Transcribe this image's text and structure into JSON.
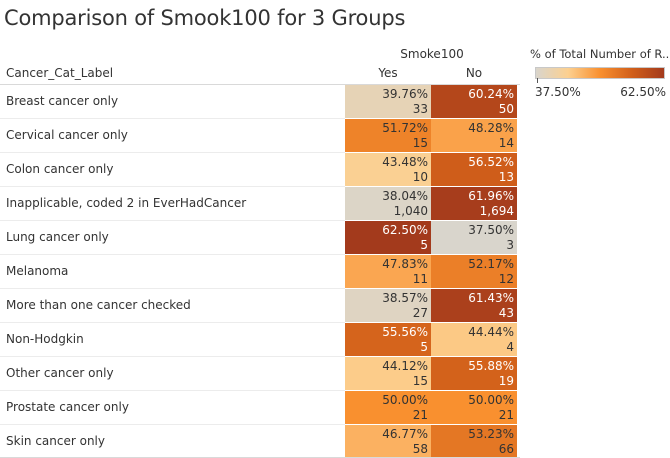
{
  "title": "Comparison of Smook100 for 3 Groups",
  "column_group_label": "Smoke100",
  "row_header_label": "Cancer_Cat_Label",
  "columns": [
    "Yes",
    "No"
  ],
  "legend": {
    "title": "% of Total Number of R..",
    "min_label": "37.50%",
    "max_label": "62.50%",
    "min_value": 37.5,
    "max_value": 62.5,
    "colors": [
      "#d9d5cc",
      "#fcd090",
      "#f9902f",
      "#d15f1a",
      "#a33a1c"
    ]
  },
  "chart_data": {
    "type": "heatmap",
    "title": "Comparison of Smook100 for 3 Groups",
    "xlabel": "Smoke100",
    "ylabel": "Cancer_Cat_Label",
    "columns": [
      "Yes",
      "No"
    ],
    "rows": [
      {
        "label": "Breast cancer only",
        "cells": [
          {
            "pct": "39.76%",
            "count": "33",
            "value": 39.76
          },
          {
            "pct": "60.24%",
            "count": "50",
            "value": 60.24
          }
        ]
      },
      {
        "label": "Cervical cancer only",
        "cells": [
          {
            "pct": "51.72%",
            "count": "15",
            "value": 51.72
          },
          {
            "pct": "48.28%",
            "count": "14",
            "value": 48.28
          }
        ]
      },
      {
        "label": "Colon cancer only",
        "cells": [
          {
            "pct": "43.48%",
            "count": "10",
            "value": 43.48
          },
          {
            "pct": "56.52%",
            "count": "13",
            "value": 56.52
          }
        ]
      },
      {
        "label": "Inapplicable, coded 2 in EverHadCancer",
        "cells": [
          {
            "pct": "38.04%",
            "count": "1,040",
            "value": 38.04
          },
          {
            "pct": "61.96%",
            "count": "1,694",
            "value": 61.96
          }
        ]
      },
      {
        "label": "Lung cancer only",
        "cells": [
          {
            "pct": "62.50%",
            "count": "5",
            "value": 62.5
          },
          {
            "pct": "37.50%",
            "count": "3",
            "value": 37.5
          }
        ]
      },
      {
        "label": "Melanoma",
        "cells": [
          {
            "pct": "47.83%",
            "count": "11",
            "value": 47.83
          },
          {
            "pct": "52.17%",
            "count": "12",
            "value": 52.17
          }
        ]
      },
      {
        "label": "More than one cancer checked",
        "cells": [
          {
            "pct": "38.57%",
            "count": "27",
            "value": 38.57
          },
          {
            "pct": "61.43%",
            "count": "43",
            "value": 61.43
          }
        ]
      },
      {
        "label": "Non-Hodgkin",
        "cells": [
          {
            "pct": "55.56%",
            "count": "5",
            "value": 55.56
          },
          {
            "pct": "44.44%",
            "count": "4",
            "value": 44.44
          }
        ]
      },
      {
        "label": "Other cancer only",
        "cells": [
          {
            "pct": "44.12%",
            "count": "15",
            "value": 44.12
          },
          {
            "pct": "55.88%",
            "count": "19",
            "value": 55.88
          }
        ]
      },
      {
        "label": "Prostate cancer only",
        "cells": [
          {
            "pct": "50.00%",
            "count": "21",
            "value": 50.0
          },
          {
            "pct": "50.00%",
            "count": "21",
            "value": 50.0
          }
        ]
      },
      {
        "label": "Skin cancer only",
        "cells": [
          {
            "pct": "46.77%",
            "count": "58",
            "value": 46.77
          },
          {
            "pct": "53.23%",
            "count": "66",
            "value": 53.23
          }
        ]
      }
    ]
  }
}
